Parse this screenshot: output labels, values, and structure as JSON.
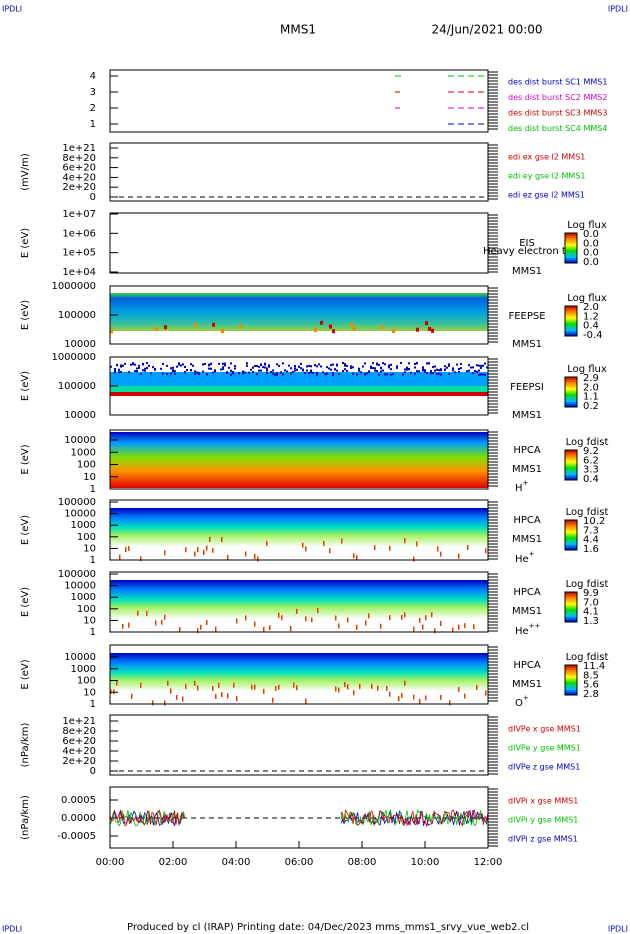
{
  "header": {
    "corner_left": "IPDLI",
    "corner_right": "IPDLI",
    "spacecraft": "MMS1",
    "date": "24/Jun/2021 00:00"
  },
  "panels": [
    {
      "ylabel": "",
      "yticks": [
        "4",
        "3",
        "2",
        "1"
      ],
      "legend": [
        {
          "text": "des dist burst SC1 MMS1",
          "color": "#0000c0"
        },
        {
          "text": "des dist burst SC2 MMS2",
          "color": "#d000d0"
        },
        {
          "text": "des dist burst SC3 MMS3",
          "color": "#d00000"
        },
        {
          "text": "des dist burst SC4 MMS4",
          "color": "#00c000"
        }
      ]
    },
    {
      "ylabel": "(mV/m)",
      "yticks": [
        "1e+21",
        "8e+20",
        "6e+20",
        "4e+20",
        "2e+20",
        "0"
      ],
      "legend": [
        {
          "text": "edi ex gse l2 MMS1",
          "color": "#d00000"
        },
        {
          "text": "edi ey gse l2 MMS1",
          "color": "#00c000"
        },
        {
          "text": "edi ez gse l2 MMS1",
          "color": "#0000c0"
        }
      ]
    },
    {
      "ylabel": "E (eV)",
      "yticks": [
        "1e+07",
        "1e+06",
        "1e+05",
        "1e+04"
      ],
      "instrument": "EIS",
      "spacecraft": "MMS1",
      "note": "Heavy electron to",
      "colorbar_title": "Log flux",
      "colorbar": [
        "0.0",
        "0.0",
        "0.0",
        "0.0"
      ]
    },
    {
      "ylabel": "E (eV)",
      "yticks": [
        "1000000",
        "100000",
        "10000"
      ],
      "instrument": "FEEPSE",
      "spacecraft": "MMS1",
      "colorbar_title": "Log flux",
      "colorbar": [
        "2.0",
        "1.2",
        "0.4",
        "-0.4"
      ]
    },
    {
      "ylabel": "E (eV)",
      "yticks": [
        "1000000",
        "100000",
        "10000"
      ],
      "instrument": "FEEPSI",
      "spacecraft": "MMS1",
      "colorbar_title": "Log flux",
      "colorbar": [
        "2.9",
        "2.0",
        "1.1",
        "0.2"
      ]
    },
    {
      "ylabel": "E (eV)",
      "yticks": [
        "10000",
        "1000",
        "100",
        "10",
        "1"
      ],
      "instrument": "HPCA",
      "spacecraft": "MMS1",
      "species": "H",
      "charge": "+",
      "colorbar_title": "Log fdist",
      "colorbar": [
        "9.2",
        "6.2",
        "3.3",
        "0.4"
      ]
    },
    {
      "ylabel": "E (eV)",
      "yticks": [
        "100000",
        "10000",
        "1000",
        "100",
        "10",
        "1"
      ],
      "instrument": "HPCA",
      "spacecraft": "MMS1",
      "species": "He",
      "charge": "+",
      "colorbar_title": "Log fdist",
      "colorbar": [
        "10.2",
        "7.3",
        "4.4",
        "1.6"
      ]
    },
    {
      "ylabel": "E (eV)",
      "yticks": [
        "100000",
        "10000",
        "1000",
        "100",
        "10",
        "1"
      ],
      "instrument": "HPCA",
      "spacecraft": "MMS1",
      "species": "He",
      "charge": "++",
      "colorbar_title": "Log fdist",
      "colorbar": [
        "9.9",
        "7.0",
        "4.1",
        "1.3"
      ]
    },
    {
      "ylabel": "E (eV)",
      "yticks": [
        "10000",
        "1000",
        "100",
        "10",
        "1"
      ],
      "instrument": "HPCA",
      "spacecraft": "MMS1",
      "species": "O",
      "charge": "+",
      "colorbar_title": "Log fdist",
      "colorbar": [
        "11.4",
        "8.5",
        "5.6",
        "2.8"
      ]
    },
    {
      "ylabel": "(nPa/km)",
      "yticks": [
        "1e+21",
        "8e+20",
        "6e+20",
        "4e+20",
        "2e+20",
        "0"
      ],
      "legend": [
        {
          "text": "dIVPe x gse MMS1",
          "color": "#d00000"
        },
        {
          "text": "dIVPe y gse MMS1",
          "color": "#00c000"
        },
        {
          "text": "dIVPe z gse MMS1",
          "color": "#0000c0"
        }
      ]
    },
    {
      "ylabel": "(nPa/km)",
      "yticks": [
        "0.0005",
        "0.0000",
        "-0.0005"
      ],
      "legend": [
        {
          "text": "dIVPi x gse MMS1",
          "color": "#d00000"
        },
        {
          "text": "dIVPi y gse MMS1",
          "color": "#00c000"
        },
        {
          "text": "dIVPi z gse MMS1",
          "color": "#0000c0"
        }
      ]
    }
  ],
  "xticks": [
    "00:00",
    "02:00",
    "04:00",
    "06:00",
    "08:00",
    "10:00",
    "12:00"
  ],
  "footer": {
    "text": "Produced by cl (IRAP)   Printing date: 04/Dec/2023   mms_mms1_srvy_vue_web2.cl",
    "corner_left": "IPDLI",
    "corner_right": "IPDLI"
  }
}
